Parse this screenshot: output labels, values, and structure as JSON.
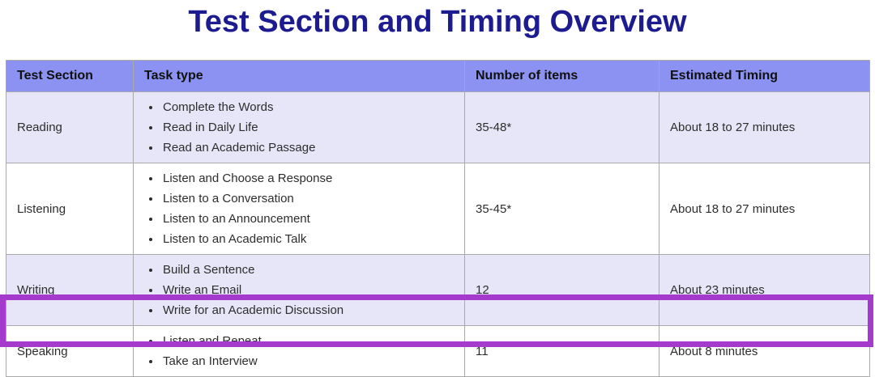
{
  "title": "Test Section and Timing Overview",
  "table": {
    "headers": [
      "Test Section",
      "Task type",
      "Number of items",
      "Estimated Timing"
    ],
    "rows": [
      {
        "section": "Reading",
        "tasks": [
          "Complete the Words",
          "Read in Daily Life",
          "Read an Academic Passage"
        ],
        "items": "35-48*",
        "timing": "About 18 to 27 minutes",
        "highlighted": false
      },
      {
        "section": "Listening",
        "tasks": [
          "Listen and Choose a Response",
          "Listen to a Conversation",
          "Listen to an Announcement",
          "Listen to an Academic Talk"
        ],
        "items": "35-45*",
        "timing": "About 18 to 27 minutes",
        "highlighted": false
      },
      {
        "section": "Writing",
        "tasks": [
          "Build a Sentence",
          "Write an Email",
          "Write for an Academic Discussion"
        ],
        "items": "12",
        "timing": "About 23 minutes",
        "highlighted": false
      },
      {
        "section": "Speaking",
        "tasks": [
          "Listen and Repeat",
          "Take an Interview"
        ],
        "items": "11",
        "timing": "About 8 minutes",
        "highlighted": true
      }
    ]
  },
  "colors": {
    "title": "#1c1c90",
    "header_bg": "#8c92f2",
    "header_text": "#101010",
    "row_bg": "#ffffff",
    "row_alt_bg": "#e7e6f8",
    "body_text": "#2d2d2d",
    "border": "#a9a9a9",
    "highlight": "#a43bcd"
  }
}
